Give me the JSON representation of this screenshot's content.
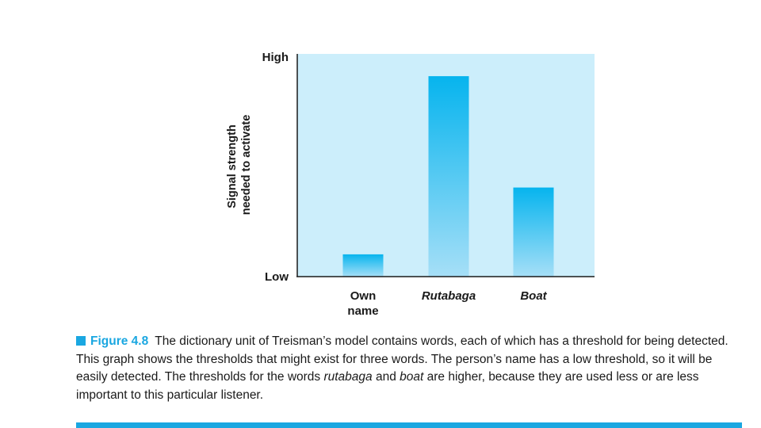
{
  "colors": {
    "plot_background": "#cceefb",
    "bar_top": "#06b4ee",
    "bar_bottom": "#a6dff7",
    "accent": "#1aa7e1",
    "axis": "#1a1a1a"
  },
  "chart_data": {
    "type": "bar",
    "title": "",
    "categories": [
      "Own name",
      "Rutabaga",
      "Boat"
    ],
    "category_lines": [
      [
        "Own",
        "name"
      ],
      [
        "Rutabaga"
      ],
      [
        "Boat"
      ]
    ],
    "category_italic": [
      false,
      true,
      true
    ],
    "values": [
      0.1,
      0.9,
      0.4
    ],
    "ylabel_lines": [
      "Signal strength",
      "needed to activate"
    ],
    "ylabel": "Signal strength needed to activate",
    "xlabel": "",
    "ylim": [
      0,
      1
    ],
    "y_tick_labels": {
      "top": "High",
      "bottom": "Low"
    },
    "grid": false,
    "legend": "none"
  },
  "caption": {
    "figure_label": "Figure 4.8",
    "text_1": "The dictionary unit of Treisman’s model contains words, each of which has a threshold for being detected. This graph shows the thresholds that might exist for three words. The person’s name has a low threshold, so it will be easily detected. The thresholds for the words ",
    "emph_1": "rutabaga",
    "text_2": " and ",
    "emph_2": "boat",
    "text_3": " are higher, because they are used less or are less important to this particular listener."
  }
}
